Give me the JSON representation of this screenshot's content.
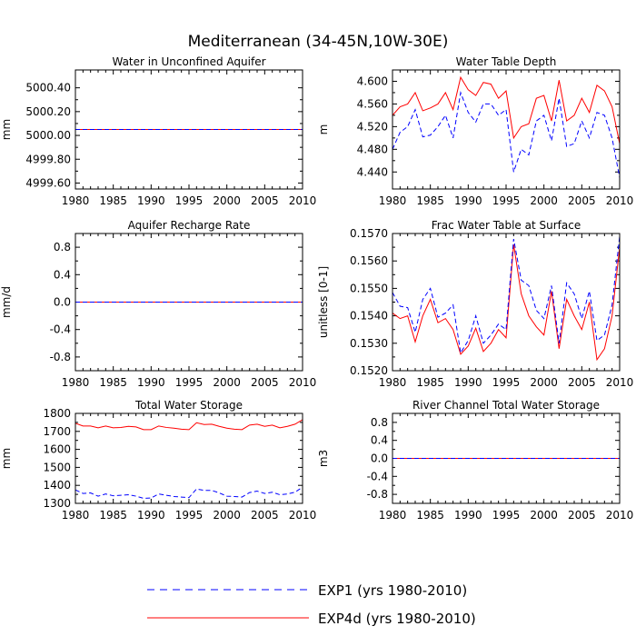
{
  "title": "Mediterranean (34-45N,10W-30E)",
  "legend": [
    {
      "label": "EXP1 (yrs 1980-2010)",
      "color": "#0000ff",
      "dash": "dashed"
    },
    {
      "label": "EXP4d (yrs 1980-2010)",
      "color": "#ff0000",
      "dash": "solid"
    }
  ],
  "chart_data": [
    {
      "type": "line",
      "title": "Water in Unconfined Aquifer",
      "ylabel": "mm",
      "xlim": [
        1980,
        2010
      ],
      "ylim": [
        4999.55,
        5000.55
      ],
      "xticks": [
        1980,
        1985,
        1990,
        1995,
        2000,
        2005,
        2010
      ],
      "yticks": [
        4999.6,
        4999.8,
        5000.0,
        5000.2,
        5000.4
      ],
      "ytick_labels": [
        "4999.60",
        "4999.80",
        "5000.00",
        "5000.20",
        "5000.40"
      ],
      "x": [
        1980,
        2010
      ],
      "series": [
        {
          "name": "EXP1",
          "values": [
            5000.05,
            5000.05
          ]
        },
        {
          "name": "EXP4d",
          "values": [
            5000.05,
            5000.05
          ]
        }
      ]
    },
    {
      "type": "line",
      "title": "Water Table Depth",
      "ylabel": "m",
      "xlim": [
        1980,
        2010
      ],
      "ylim": [
        4.41,
        4.62
      ],
      "xticks": [
        1980,
        1985,
        1990,
        1995,
        2000,
        2005,
        2010
      ],
      "yticks": [
        4.44,
        4.48,
        4.52,
        4.56,
        4.6
      ],
      "ytick_labels": [
        "4.440",
        "4.480",
        "4.520",
        "4.560",
        "4.600"
      ],
      "x": [
        1980,
        1981,
        1982,
        1983,
        1984,
        1985,
        1986,
        1987,
        1988,
        1989,
        1990,
        1991,
        1992,
        1993,
        1994,
        1995,
        1996,
        1997,
        1998,
        1999,
        2000,
        2001,
        2002,
        2003,
        2004,
        2005,
        2006,
        2007,
        2008,
        2009,
        2010
      ],
      "series": [
        {
          "name": "EXP1",
          "values": [
            4.48,
            4.51,
            4.52,
            4.55,
            4.502,
            4.505,
            4.52,
            4.54,
            4.5,
            4.58,
            4.545,
            4.528,
            4.56,
            4.56,
            4.54,
            4.55,
            4.44,
            4.48,
            4.47,
            4.53,
            4.54,
            4.495,
            4.57,
            4.485,
            4.49,
            4.53,
            4.5,
            4.545,
            4.54,
            4.5,
            4.43
          ]
        },
        {
          "name": "EXP4d",
          "values": [
            4.54,
            4.555,
            4.56,
            4.58,
            4.548,
            4.553,
            4.56,
            4.58,
            4.55,
            4.607,
            4.585,
            4.575,
            4.598,
            4.595,
            4.57,
            4.583,
            4.5,
            4.52,
            4.525,
            4.57,
            4.575,
            4.53,
            4.602,
            4.53,
            4.54,
            4.57,
            4.545,
            4.593,
            4.583,
            4.555,
            4.49
          ]
        }
      ]
    },
    {
      "type": "line",
      "title": "Aquifer Recharge Rate",
      "ylabel": "mm/d",
      "xlim": [
        1980,
        2010
      ],
      "ylim": [
        -1.0,
        1.0
      ],
      "xticks": [
        1980,
        1985,
        1990,
        1995,
        2000,
        2005,
        2010
      ],
      "yticks": [
        -0.8,
        -0.4,
        0.0,
        0.4,
        0.8
      ],
      "ytick_labels": [
        "-0.8",
        "-0.4",
        "0.0",
        "0.4",
        "0.8"
      ],
      "x": [
        1980,
        2010
      ],
      "series": [
        {
          "name": "EXP1",
          "values": [
            0.0,
            0.0
          ]
        },
        {
          "name": "EXP4d",
          "values": [
            0.0,
            0.0
          ]
        }
      ]
    },
    {
      "type": "line",
      "title": "Frac Water Table at Surface",
      "ylabel": "unitless [0-1]",
      "xlim": [
        1980,
        2010
      ],
      "ylim": [
        0.152,
        0.157
      ],
      "xticks": [
        1980,
        1985,
        1990,
        1995,
        2000,
        2005,
        2010
      ],
      "yticks": [
        0.152,
        0.153,
        0.154,
        0.155,
        0.156,
        0.157
      ],
      "ytick_labels": [
        "0.1520",
        "0.1530",
        "0.1540",
        "0.1550",
        "0.1560",
        "0.1570"
      ],
      "x": [
        1980,
        1981,
        1982,
        1983,
        1984,
        1985,
        1986,
        1987,
        1988,
        1989,
        1990,
        1991,
        1992,
        1993,
        1994,
        1995,
        1996,
        1997,
        1998,
        1999,
        2000,
        2001,
        2002,
        2003,
        2004,
        2005,
        2006,
        2007,
        2008,
        2009,
        2010
      ],
      "series": [
        {
          "name": "EXP1",
          "values": [
            0.15485,
            0.15435,
            0.1543,
            0.1534,
            0.1546,
            0.155,
            0.15395,
            0.1541,
            0.1544,
            0.15265,
            0.1531,
            0.154,
            0.153,
            0.1533,
            0.1537,
            0.1535,
            0.1568,
            0.1553,
            0.1551,
            0.1542,
            0.1539,
            0.1551,
            0.153,
            0.1552,
            0.1548,
            0.1539,
            0.1549,
            0.1531,
            0.1533,
            0.1544,
            0.1569
          ]
        },
        {
          "name": "EXP4d",
          "values": [
            0.1541,
            0.1539,
            0.154,
            0.15305,
            0.154,
            0.1546,
            0.15375,
            0.1539,
            0.1535,
            0.1526,
            0.1529,
            0.15355,
            0.1527,
            0.153,
            0.1535,
            0.1532,
            0.1566,
            0.1548,
            0.154,
            0.1536,
            0.1533,
            0.1549,
            0.1528,
            0.1546,
            0.154,
            0.1535,
            0.1545,
            0.1524,
            0.1528,
            0.154,
            0.1565
          ]
        }
      ]
    },
    {
      "type": "line",
      "title": "Total Water Storage",
      "ylabel": "mm",
      "xlim": [
        1980,
        2010
      ],
      "ylim": [
        1300,
        1800
      ],
      "xticks": [
        1980,
        1985,
        1990,
        1995,
        2000,
        2005,
        2010
      ],
      "yticks": [
        1300,
        1400,
        1500,
        1600,
        1700,
        1800
      ],
      "ytick_labels": [
        "1300",
        "1400",
        "1500",
        "1600",
        "1700",
        "1800"
      ],
      "x": [
        1980,
        1981,
        1982,
        1983,
        1984,
        1985,
        1986,
        1987,
        1988,
        1989,
        1990,
        1991,
        1992,
        1993,
        1994,
        1995,
        1996,
        1997,
        1998,
        1999,
        2000,
        2001,
        2002,
        2003,
        2004,
        2005,
        2006,
        2007,
        2008,
        2009,
        2010
      ],
      "series": [
        {
          "name": "EXP1",
          "values": [
            1375,
            1355,
            1358,
            1340,
            1352,
            1342,
            1345,
            1348,
            1340,
            1328,
            1330,
            1352,
            1345,
            1338,
            1335,
            1332,
            1380,
            1372,
            1372,
            1358,
            1340,
            1338,
            1335,
            1360,
            1368,
            1355,
            1362,
            1348,
            1352,
            1362,
            1390
          ]
        },
        {
          "name": "EXP4d",
          "values": [
            1745,
            1730,
            1730,
            1720,
            1730,
            1720,
            1722,
            1728,
            1725,
            1710,
            1710,
            1730,
            1722,
            1718,
            1712,
            1710,
            1748,
            1738,
            1740,
            1728,
            1718,
            1712,
            1710,
            1735,
            1740,
            1728,
            1735,
            1720,
            1728,
            1740,
            1765
          ]
        }
      ]
    },
    {
      "type": "line",
      "title": "River Channel Total Water Storage",
      "ylabel": "m3",
      "xlim": [
        1980,
        2010
      ],
      "ylim": [
        -1.0,
        1.0
      ],
      "xticks": [
        1980,
        1985,
        1990,
        1995,
        2000,
        2005,
        2010
      ],
      "yticks": [
        -0.8,
        -0.4,
        0.0,
        0.4,
        0.8
      ],
      "ytick_labels": [
        "-0.8",
        "-0.4",
        "0.0",
        "0.4",
        "0.8"
      ],
      "x": [
        1980,
        2010
      ],
      "series": [
        {
          "name": "EXP1",
          "values": [
            0.0,
            0.0
          ]
        },
        {
          "name": "EXP4d",
          "values": [
            0.0,
            0.0
          ]
        }
      ]
    }
  ]
}
